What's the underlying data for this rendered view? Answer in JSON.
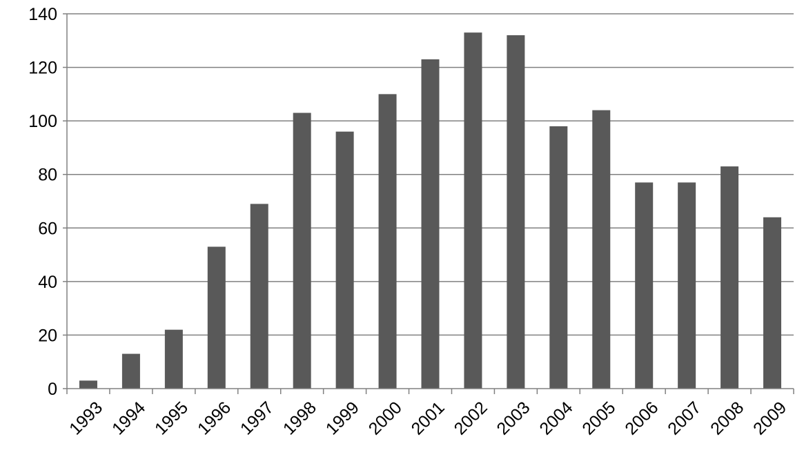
{
  "chart_data": {
    "type": "bar",
    "title": "",
    "xlabel": "",
    "ylabel": "",
    "categories": [
      "1993",
      "1994",
      "1995",
      "1996",
      "1997",
      "1998",
      "1999",
      "2000",
      "2001",
      "2002",
      "2003",
      "2004",
      "2005",
      "2006",
      "2007",
      "2008",
      "2009"
    ],
    "values": [
      3,
      13,
      22,
      53,
      69,
      103,
      96,
      110,
      123,
      133,
      132,
      98,
      104,
      77,
      77,
      83,
      64
    ],
    "ylim": [
      0,
      140
    ],
    "yticks": [
      0,
      20,
      40,
      60,
      80,
      100,
      120,
      140
    ],
    "grid": true,
    "legend": "none",
    "colors": {
      "bar": "#595959",
      "grid": "#808080",
      "axis": "#808080",
      "text": "#000000",
      "background": "#ffffff"
    }
  }
}
